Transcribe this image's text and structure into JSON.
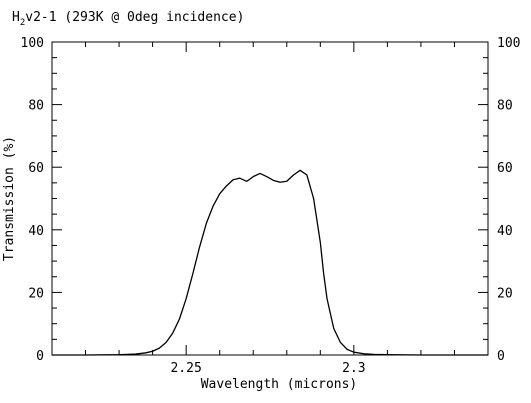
{
  "chart_data": {
    "type": "line",
    "title": "H2v2-1 (293K @ 0deg incidence)",
    "title_parts": {
      "main": "H",
      "subscript": "2",
      "rest": "v2-1 (293K @ 0deg incidence)"
    },
    "xlabel": "Wavelength (microns)",
    "ylabel": "Transmission (%)",
    "xlim": [
      2.21,
      2.34
    ],
    "ylim": [
      0,
      100
    ],
    "x_major_ticks": [
      2.25,
      2.3
    ],
    "x_tick_labels": [
      "2.25",
      "2.3"
    ],
    "x_minor_step": 0.01,
    "y_major_ticks": [
      0,
      20,
      40,
      60,
      80,
      100
    ],
    "y_tick_labels": [
      "0",
      "20",
      "40",
      "60",
      "80",
      "100"
    ],
    "y_minor_step": 5,
    "right_axis_labels": true,
    "grid": false,
    "legend": "none",
    "series": [
      {
        "x": [
          2.21,
          2.22,
          2.23,
          2.235,
          2.238,
          2.24,
          2.242,
          2.244,
          2.246,
          2.248,
          2.25,
          2.252,
          2.254,
          2.256,
          2.258,
          2.26,
          2.262,
          2.264,
          2.266,
          2.268,
          2.2685,
          2.27,
          2.272,
          2.274,
          2.276,
          2.278,
          2.28,
          2.282,
          2.284,
          2.286,
          2.288,
          2.29,
          2.291,
          2.292,
          2.294,
          2.296,
          2.298,
          2.3,
          2.303,
          2.306,
          2.31,
          2.32,
          2.33,
          2.34
        ],
        "y": [
          0.0,
          0.0,
          0.1,
          0.3,
          0.7,
          1.2,
          2.2,
          4.0,
          7.0,
          11.5,
          18.0,
          26.0,
          34.5,
          42.0,
          47.5,
          51.5,
          54.0,
          56.0,
          56.5,
          55.5,
          55.8,
          57.0,
          58.0,
          57.0,
          55.8,
          55.2,
          55.5,
          57.5,
          59.0,
          57.5,
          50.0,
          36.0,
          26.0,
          18.0,
          8.5,
          4.0,
          1.8,
          0.9,
          0.4,
          0.2,
          0.1,
          0.0,
          0.0,
          0.0
        ]
      }
    ]
  }
}
